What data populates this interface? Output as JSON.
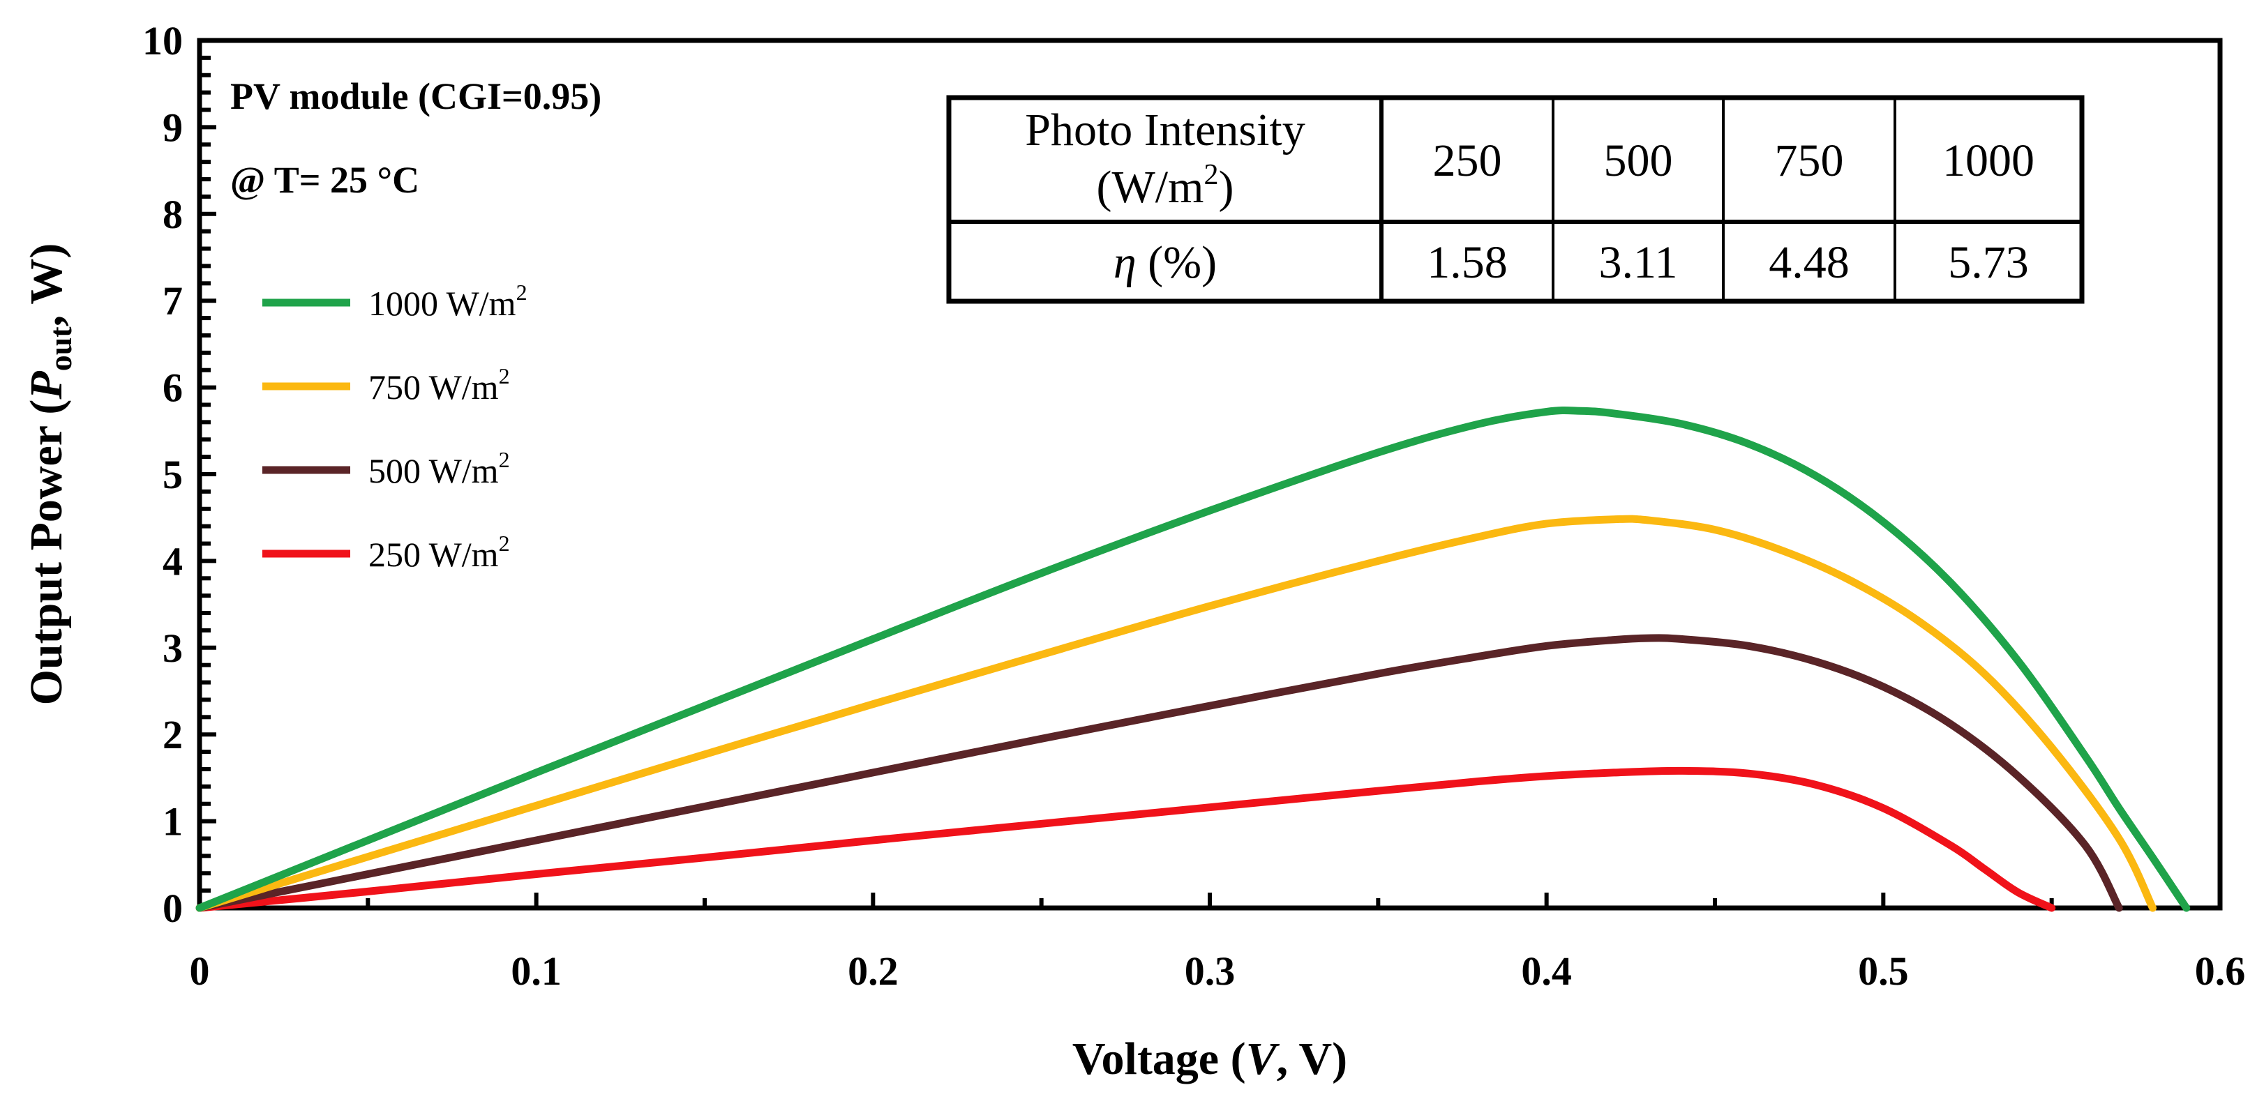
{
  "chart_data": {
    "type": "line",
    "title": "",
    "xlabel": "Voltage",
    "xlabel_var": "V",
    "xlabel_unit": "V",
    "ylabel": "Output Power",
    "ylabel_var": "P",
    "ylabel_sub": "out",
    "ylabel_unit": "W",
    "xlim": [
      0,
      0.6
    ],
    "ylim": [
      0,
      10
    ],
    "x_ticks": [
      0,
      0.1,
      0.2,
      0.3,
      0.4,
      0.5,
      0.6
    ],
    "x_tick_labels": [
      "0",
      "0.1",
      "0.2",
      "0.3",
      "0.4",
      "0.5",
      "0.6"
    ],
    "y_ticks": [
      0,
      1,
      2,
      3,
      4,
      5,
      6,
      7,
      8,
      9,
      10
    ],
    "y_tick_labels": [
      "0",
      "1",
      "2",
      "3",
      "4",
      "5",
      "6",
      "7",
      "8",
      "9",
      "10"
    ],
    "grid": false,
    "legend_position": "left",
    "annotations": [
      "PV module (CGI=0.95)",
      "@ T= 25 °C"
    ],
    "series": [
      {
        "name": "1000 W/m²",
        "label_base": "1000 W/m",
        "label_sup": "2",
        "color": "#1fa34a",
        "x": [
          0,
          0.05,
          0.1,
          0.15,
          0.2,
          0.25,
          0.3,
          0.35,
          0.38,
          0.4,
          0.41,
          0.42,
          0.44,
          0.46,
          0.48,
          0.5,
          0.52,
          0.54,
          0.56,
          0.57,
          0.58,
          0.59
        ],
        "y": [
          0,
          0.78,
          1.56,
          2.33,
          3.1,
          3.86,
          4.58,
          5.25,
          5.58,
          5.72,
          5.73,
          5.7,
          5.58,
          5.35,
          4.98,
          4.45,
          3.75,
          2.85,
          1.75,
          1.15,
          0.58,
          0
        ]
      },
      {
        "name": "750 W/m²",
        "label_base": "750 W/m",
        "label_sup": "2",
        "color": "#fbb811",
        "x": [
          0,
          0.05,
          0.1,
          0.15,
          0.2,
          0.25,
          0.3,
          0.35,
          0.38,
          0.4,
          0.42,
          0.43,
          0.45,
          0.47,
          0.49,
          0.51,
          0.53,
          0.55,
          0.57,
          0.58
        ],
        "y": [
          0,
          0.59,
          1.18,
          1.77,
          2.35,
          2.92,
          3.48,
          4.0,
          4.28,
          4.43,
          4.48,
          4.47,
          4.36,
          4.12,
          3.78,
          3.32,
          2.7,
          1.85,
          0.8,
          0
        ]
      },
      {
        "name": "500 W/m²",
        "label_base": "500 W/m",
        "label_sup": "2",
        "color": "#5a2427",
        "x": [
          0,
          0.05,
          0.1,
          0.15,
          0.2,
          0.25,
          0.3,
          0.35,
          0.38,
          0.4,
          0.42,
          0.43,
          0.44,
          0.46,
          0.48,
          0.5,
          0.52,
          0.54,
          0.56,
          0.57
        ],
        "y": [
          0,
          0.39,
          0.78,
          1.17,
          1.56,
          1.95,
          2.33,
          2.7,
          2.9,
          3.02,
          3.09,
          3.11,
          3.1,
          3.02,
          2.84,
          2.55,
          2.12,
          1.52,
          0.72,
          0
        ]
      },
      {
        "name": "250 W/m²",
        "label_base": "250 W/m",
        "label_sup": "2",
        "color": "#f0121a",
        "x": [
          0,
          0.05,
          0.1,
          0.15,
          0.2,
          0.25,
          0.3,
          0.35,
          0.38,
          0.4,
          0.42,
          0.44,
          0.46,
          0.48,
          0.5,
          0.52,
          0.53,
          0.54,
          0.55
        ],
        "y": [
          0,
          0.19,
          0.39,
          0.58,
          0.78,
          0.97,
          1.16,
          1.35,
          1.46,
          1.52,
          1.56,
          1.58,
          1.55,
          1.42,
          1.15,
          0.72,
          0.45,
          0.18,
          0
        ]
      }
    ],
    "inset_table": {
      "row1_label_line1": "Photo Intensity",
      "row1_label_line2_base": "(W/m",
      "row1_label_line2_sup": "2",
      "row1_label_line2_end": ")",
      "row1_values": [
        "250",
        "500",
        "750",
        "1000"
      ],
      "row2_label_symbol": "η",
      "row2_label_unit": "(%)",
      "row2_values": [
        "1.58",
        "3.11",
        "4.48",
        "5.73"
      ]
    }
  }
}
